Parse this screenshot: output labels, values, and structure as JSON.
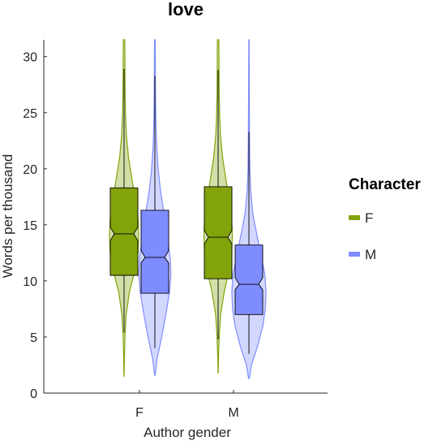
{
  "chart_data": {
    "type": "violin",
    "title": "love",
    "xlabel": "Author gender",
    "ylabel": "Words per thousand",
    "categories": [
      "F",
      "M"
    ],
    "ylim": [
      0,
      31.5
    ],
    "yticks": [
      0,
      5,
      10,
      15,
      20,
      25,
      30
    ],
    "grid": false,
    "legend": {
      "title": "Character",
      "placement": "right",
      "entries": [
        "F",
        "M"
      ]
    },
    "series": [
      {
        "name": "F",
        "color": "#82a40a",
        "groups": [
          {
            "category": "F",
            "q1": 10.5,
            "median": 14.2,
            "q3": 18.3,
            "notch_low": 13.6,
            "notch_high": 14.8,
            "whisker_low": 5.4,
            "whisker_high": 28.9,
            "violin_min": 1.5,
            "violin_max": 31.5,
            "density": [
              [
                1.5,
                0.005
              ],
              [
                3,
                0.02
              ],
              [
                5,
                0.05
              ],
              [
                7,
                0.12
              ],
              [
                9,
                0.3
              ],
              [
                11,
                0.62
              ],
              [
                12.5,
                0.78
              ],
              [
                14,
                0.82
              ],
              [
                15.5,
                0.78
              ],
              [
                17,
                0.66
              ],
              [
                19,
                0.45
              ],
              [
                21,
                0.25
              ],
              [
                23,
                0.13
              ],
              [
                25,
                0.08
              ],
              [
                27,
                0.06
              ],
              [
                29,
                0.05
              ],
              [
                31.5,
                0.04
              ]
            ]
          },
          {
            "category": "M",
            "q1": 10.2,
            "median": 13.9,
            "q3": 18.4,
            "notch_low": 13.3,
            "notch_high": 14.5,
            "whisker_low": 4.8,
            "whisker_high": 28.8,
            "violin_min": 1.8,
            "violin_max": 31.5,
            "density": [
              [
                1.8,
                0.005
              ],
              [
                3,
                0.02
              ],
              [
                5,
                0.06
              ],
              [
                7,
                0.14
              ],
              [
                9,
                0.34
              ],
              [
                11,
                0.62
              ],
              [
                12.5,
                0.76
              ],
              [
                14,
                0.8
              ],
              [
                15.5,
                0.76
              ],
              [
                17,
                0.64
              ],
              [
                19,
                0.44
              ],
              [
                21,
                0.25
              ],
              [
                23,
                0.13
              ],
              [
                25,
                0.08
              ],
              [
                27,
                0.06
              ],
              [
                29,
                0.05
              ],
              [
                31.5,
                0.04
              ]
            ]
          }
        ]
      },
      {
        "name": "M",
        "color": "#7f8cff",
        "groups": [
          {
            "category": "F",
            "q1": 8.9,
            "median": 12.1,
            "q3": 16.3,
            "notch_low": 11.6,
            "notch_high": 12.7,
            "whisker_low": 4.0,
            "whisker_high": 28.3,
            "violin_min": 1.6,
            "violin_max": 31.5,
            "density": [
              [
                1.6,
                0.02
              ],
              [
                3,
                0.12
              ],
              [
                5,
                0.38
              ],
              [
                7,
                0.62
              ],
              [
                9,
                0.82
              ],
              [
                10.5,
                0.9
              ],
              [
                12,
                0.86
              ],
              [
                14,
                0.7
              ],
              [
                16,
                0.52
              ],
              [
                18,
                0.32
              ],
              [
                20,
                0.18
              ],
              [
                22,
                0.1
              ],
              [
                24,
                0.06
              ],
              [
                26,
                0.04
              ],
              [
                28,
                0.03
              ],
              [
                31.5,
                0.02
              ]
            ]
          },
          {
            "category": "M",
            "q1": 7.0,
            "median": 9.7,
            "q3": 13.2,
            "notch_low": 9.2,
            "notch_high": 10.3,
            "whisker_low": 3.5,
            "whisker_high": 23.3,
            "violin_min": 1.3,
            "violin_max": 31.5,
            "density": [
              [
                1.3,
                0.02
              ],
              [
                2.5,
                0.14
              ],
              [
                4,
                0.45
              ],
              [
                6,
                0.78
              ],
              [
                7.5,
                0.92
              ],
              [
                9,
                0.96
              ],
              [
                10.5,
                0.9
              ],
              [
                12,
                0.72
              ],
              [
                14,
                0.46
              ],
              [
                16,
                0.22
              ],
              [
                18,
                0.1
              ],
              [
                20,
                0.05
              ],
              [
                23,
                0.03
              ],
              [
                27,
                0.02
              ],
              [
                31.5,
                0.01
              ]
            ]
          }
        ]
      }
    ]
  }
}
